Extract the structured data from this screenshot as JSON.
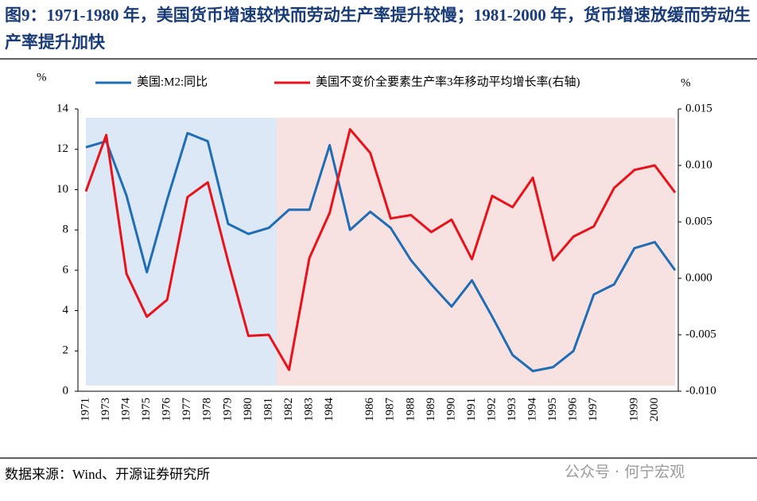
{
  "chart_data": {
    "type": "line",
    "title": "图9：1971-1980 年，美国货币增速较快而劳动生产率提升较慢；1981-2000 年，货币增速放缓而劳动生产率提升加快",
    "y_label": "%",
    "y2_label": "%",
    "categories": [
      "1971",
      "1973",
      "1974",
      "1975",
      "1976",
      "1977",
      "1978",
      "1979",
      "1980",
      "1981",
      "1982",
      "1983",
      "1984",
      null,
      "1986",
      "1987",
      "1988",
      "1989",
      "1990",
      "1991",
      "1992",
      "1993",
      "1994",
      "1995",
      "1996",
      "1997",
      null,
      "1999",
      "2000",
      null
    ],
    "series": [
      {
        "name": "美国:M2:同比",
        "color": "#1f6db5",
        "values": [
          12.1,
          12.4,
          9.7,
          5.9,
          9.5,
          12.8,
          12.4,
          8.3,
          7.8,
          8.1,
          9.0,
          9.0,
          12.2,
          8.0,
          8.9,
          8.1,
          6.5,
          5.3,
          4.2,
          5.5,
          3.7,
          1.8,
          1.0,
          1.2,
          2.0,
          4.8,
          5.3,
          7.1,
          7.4,
          6.0
        ]
      },
      {
        "name": "美国不变价全要素生产率3年移动平均增长率(右轴)",
        "color": "#e8121b",
        "axis": "y2",
        "values": [
          0.0077,
          0.0127,
          0.0004,
          -0.0034,
          -0.0019,
          0.0072,
          0.0085,
          0.0015,
          -0.0051,
          -0.005,
          -0.0081,
          0.0018,
          0.0058,
          0.0132,
          0.0111,
          0.0053,
          0.0056,
          0.0041,
          0.0052,
          0.0017,
          0.0073,
          0.0063,
          0.0089,
          0.0016,
          0.0037,
          0.0046,
          0.008,
          0.0096,
          0.01,
          0.0076
        ]
      }
    ],
    "ylim": [
      0,
      14
    ],
    "yticks": [
      0,
      2,
      4,
      6,
      8,
      10,
      12,
      14
    ],
    "y2lim": [
      -0.01,
      0.015
    ],
    "y2ticks": [
      {
        "value": -0.01,
        "label": "-0.010"
      },
      -0.005,
      {
        "value": 0,
        "label": "0.000"
      },
      0.005,
      {
        "value": 0.01,
        "label": "0.010"
      },
      0.015
    ]
  },
  "source": "数据来源：Wind、开源证券研究所",
  "watermark": "公众号 · 何宁宏观"
}
